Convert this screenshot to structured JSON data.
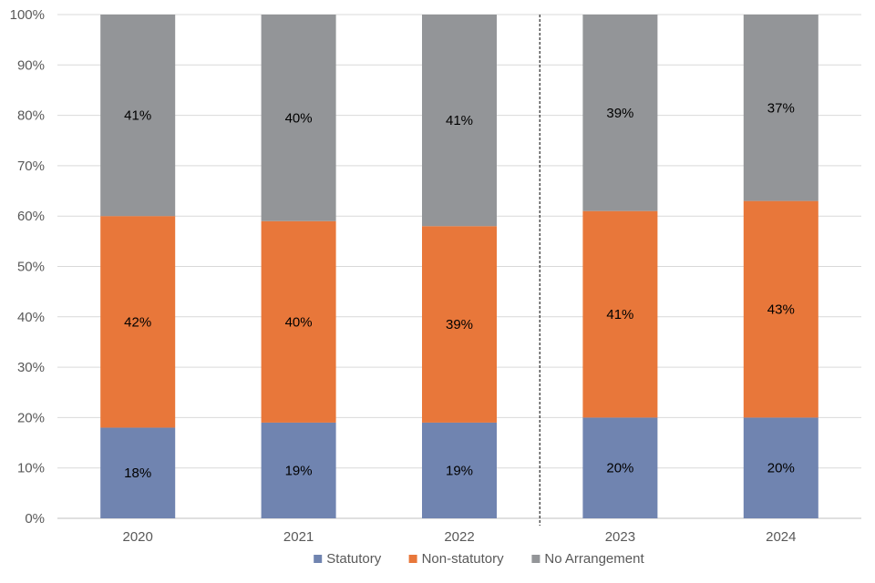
{
  "chart_data": {
    "type": "bar",
    "stacked": true,
    "percent_stacked": true,
    "categories": [
      "2020",
      "2021",
      "2022",
      "2023",
      "2024"
    ],
    "series": [
      {
        "name": "Statutory",
        "color": "#7084b0",
        "values": [
          18,
          19,
          19,
          20,
          20
        ],
        "labels": [
          "18%",
          "19%",
          "19%",
          "20%",
          "20%"
        ]
      },
      {
        "name": "Non-statutory",
        "color": "#e8773a",
        "values": [
          42,
          40,
          39,
          41,
          43
        ],
        "labels": [
          "42%",
          "40%",
          "39%",
          "41%",
          "43%"
        ]
      },
      {
        "name": "No Arrangement",
        "color": "#939598",
        "values": [
          41,
          40,
          41,
          39,
          37
        ],
        "labels": [
          "41%",
          "40%",
          "41%",
          "39%",
          "37%"
        ]
      }
    ],
    "ylim": [
      0,
      100
    ],
    "yticks": [
      "0%",
      "10%",
      "20%",
      "30%",
      "40%",
      "50%",
      "60%",
      "70%",
      "80%",
      "90%",
      "100%"
    ],
    "grid": true,
    "legend_position": "bottom",
    "divider_after_category": "2022",
    "title": "",
    "xlabel": "",
    "ylabel": ""
  }
}
